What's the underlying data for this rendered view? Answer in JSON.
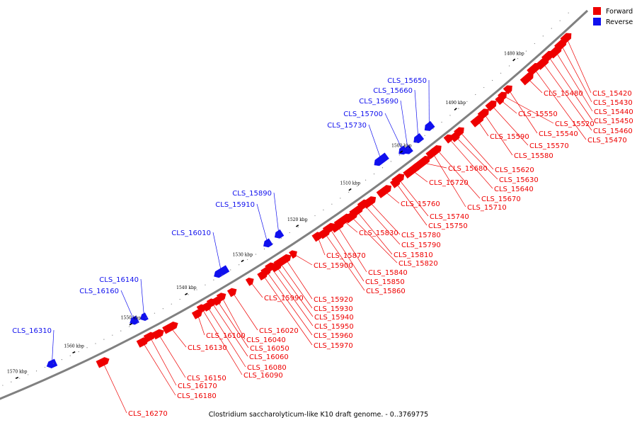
{
  "colors": {
    "forward": "#ee0000",
    "reverse": "#1010ee",
    "backbone": "#808080"
  },
  "legend": [
    {
      "label": "Forward",
      "color": "#ee0000"
    },
    {
      "label": "Reverse",
      "color": "#1010ee"
    }
  ],
  "caption": "Clostridium saccharolyticum-like K10 draft genome. - 0..3769775",
  "ticks": [
    "1480 kbp",
    "1490 kbp",
    "1500 kbp",
    "1510 kbp",
    "1520 kbp",
    "1530 kbp",
    "1540 kbp",
    "1550 kbp",
    "1560 kbp",
    "1570 kbp"
  ],
  "genes": [
    {
      "id": "CLS_15420",
      "strand": "forward"
    },
    {
      "id": "CLS_15430",
      "strand": "forward"
    },
    {
      "id": "CLS_15440",
      "strand": "forward"
    },
    {
      "id": "CLS_15450",
      "strand": "forward"
    },
    {
      "id": "CLS_15460",
      "strand": "forward"
    },
    {
      "id": "CLS_15470",
      "strand": "forward"
    },
    {
      "id": "CLS_15480",
      "strand": "forward"
    },
    {
      "id": "CLS_15520",
      "strand": "forward"
    },
    {
      "id": "CLS_15540",
      "strand": "forward"
    },
    {
      "id": "CLS_15550",
      "strand": "forward"
    },
    {
      "id": "CLS_15570",
      "strand": "forward"
    },
    {
      "id": "CLS_15580",
      "strand": "forward"
    },
    {
      "id": "CLS_15590",
      "strand": "forward"
    },
    {
      "id": "CLS_15620",
      "strand": "forward"
    },
    {
      "id": "CLS_15630",
      "strand": "forward"
    },
    {
      "id": "CLS_15640",
      "strand": "forward"
    },
    {
      "id": "CLS_15650",
      "strand": "reverse"
    },
    {
      "id": "CLS_15660",
      "strand": "reverse"
    },
    {
      "id": "CLS_15670",
      "strand": "forward"
    },
    {
      "id": "CLS_15680",
      "strand": "forward"
    },
    {
      "id": "CLS_15690",
      "strand": "reverse"
    },
    {
      "id": "CLS_15700",
      "strand": "reverse"
    },
    {
      "id": "CLS_15710",
      "strand": "forward"
    },
    {
      "id": "CLS_15720",
      "strand": "forward"
    },
    {
      "id": "CLS_15730",
      "strand": "reverse"
    },
    {
      "id": "CLS_15740",
      "strand": "forward"
    },
    {
      "id": "CLS_15750",
      "strand": "forward"
    },
    {
      "id": "CLS_15760",
      "strand": "forward"
    },
    {
      "id": "CLS_15780",
      "strand": "forward"
    },
    {
      "id": "CLS_15790",
      "strand": "forward"
    },
    {
      "id": "CLS_15810",
      "strand": "forward"
    },
    {
      "id": "CLS_15820",
      "strand": "forward"
    },
    {
      "id": "CLS_15830",
      "strand": "forward"
    },
    {
      "id": "CLS_15840",
      "strand": "forward"
    },
    {
      "id": "CLS_15850",
      "strand": "forward"
    },
    {
      "id": "CLS_15860",
      "strand": "forward"
    },
    {
      "id": "CLS_15870",
      "strand": "forward"
    },
    {
      "id": "CLS_15890",
      "strand": "reverse"
    },
    {
      "id": "CLS_15900",
      "strand": "forward"
    },
    {
      "id": "CLS_15910",
      "strand": "reverse"
    },
    {
      "id": "CLS_15920",
      "strand": "forward"
    },
    {
      "id": "CLS_15930",
      "strand": "forward"
    },
    {
      "id": "CLS_15940",
      "strand": "forward"
    },
    {
      "id": "CLS_15950",
      "strand": "forward"
    },
    {
      "id": "CLS_15960",
      "strand": "forward"
    },
    {
      "id": "CLS_15970",
      "strand": "forward"
    },
    {
      "id": "CLS_15990",
      "strand": "forward"
    },
    {
      "id": "CLS_16010",
      "strand": "reverse"
    },
    {
      "id": "CLS_16020",
      "strand": "forward"
    },
    {
      "id": "CLS_16040",
      "strand": "forward"
    },
    {
      "id": "CLS_16050",
      "strand": "forward"
    },
    {
      "id": "CLS_16060",
      "strand": "forward"
    },
    {
      "id": "CLS_16080",
      "strand": "forward"
    },
    {
      "id": "CLS_16090",
      "strand": "forward"
    },
    {
      "id": "CLS_16100",
      "strand": "forward"
    },
    {
      "id": "CLS_16130",
      "strand": "forward"
    },
    {
      "id": "CLS_16140",
      "strand": "reverse"
    },
    {
      "id": "CLS_16150",
      "strand": "forward"
    },
    {
      "id": "CLS_16160",
      "strand": "reverse"
    },
    {
      "id": "CLS_16170",
      "strand": "forward"
    },
    {
      "id": "CLS_16180",
      "strand": "forward"
    },
    {
      "id": "CLS_16270",
      "strand": "forward"
    },
    {
      "id": "CLS_16310",
      "strand": "reverse"
    }
  ]
}
